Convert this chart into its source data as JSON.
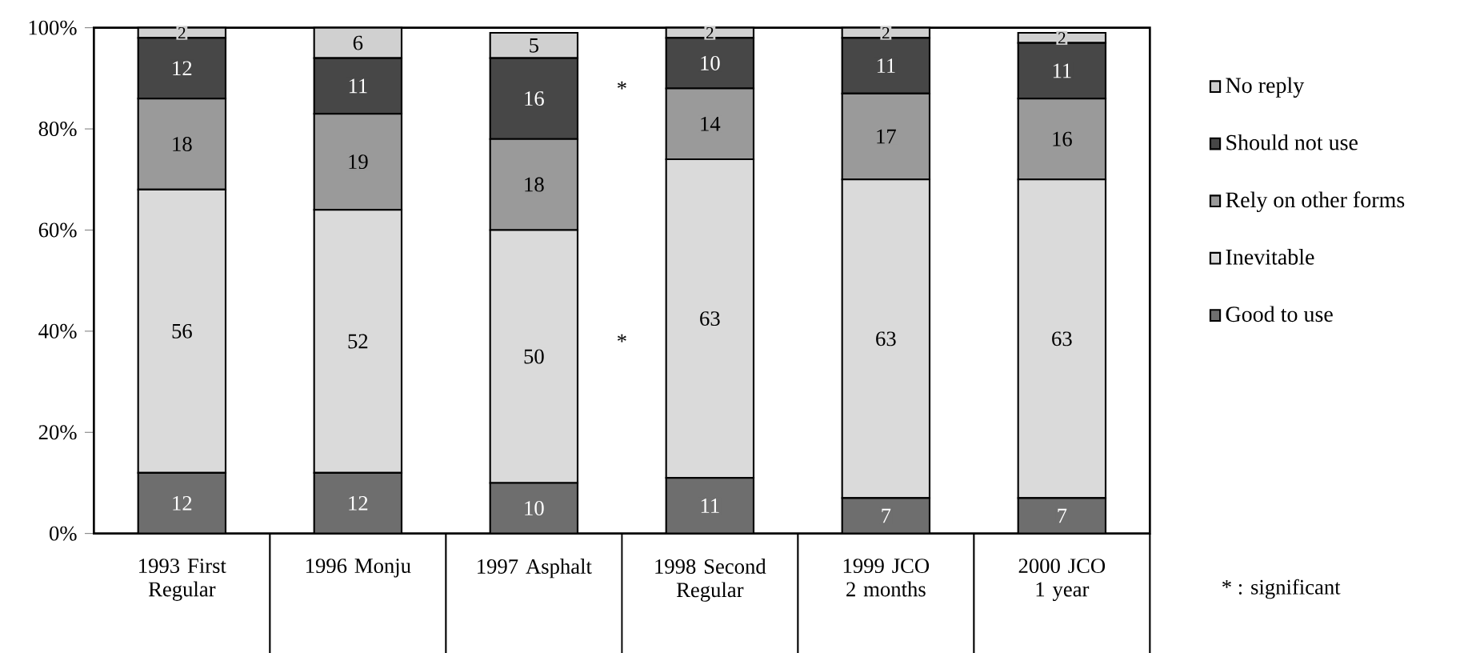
{
  "chart_data": {
    "type": "bar",
    "stacked": true,
    "categories": [
      "1993 First Regular",
      "1996 Monju",
      "1997 Asphalt",
      "1998 Second Regular",
      "1999 JCO 2 months",
      "2000 JCO 1 year"
    ],
    "series": [
      {
        "name": "Good to use",
        "color": "#6e6e6e",
        "values": [
          12,
          12,
          10,
          11,
          7,
          7
        ]
      },
      {
        "name": "Inevitable",
        "color": "#dadada",
        "values": [
          56,
          52,
          50,
          63,
          63,
          63
        ]
      },
      {
        "name": "Rely on other forms",
        "color": "#9a9a9a",
        "values": [
          18,
          19,
          18,
          14,
          17,
          16
        ]
      },
      {
        "name": "Should not use",
        "color": "#474747",
        "values": [
          12,
          11,
          16,
          10,
          11,
          11
        ]
      },
      {
        "name": "No reply",
        "color": "#d0d0d0",
        "values": [
          2,
          6,
          5,
          2,
          2,
          2
        ]
      }
    ],
    "ylim": [
      0,
      100
    ],
    "yticks": [
      {
        "value": 0,
        "label": "0%"
      },
      {
        "value": 20,
        "label": "20%"
      },
      {
        "value": 40,
        "label": "40%"
      },
      {
        "value": 60,
        "label": "60%"
      },
      {
        "value": 80,
        "label": "80%"
      },
      {
        "value": 100,
        "label": "100%"
      }
    ],
    "data_labels": true,
    "legend": "right",
    "grid": false,
    "annotations": [
      "*",
      "*",
      "* : significant"
    ]
  }
}
